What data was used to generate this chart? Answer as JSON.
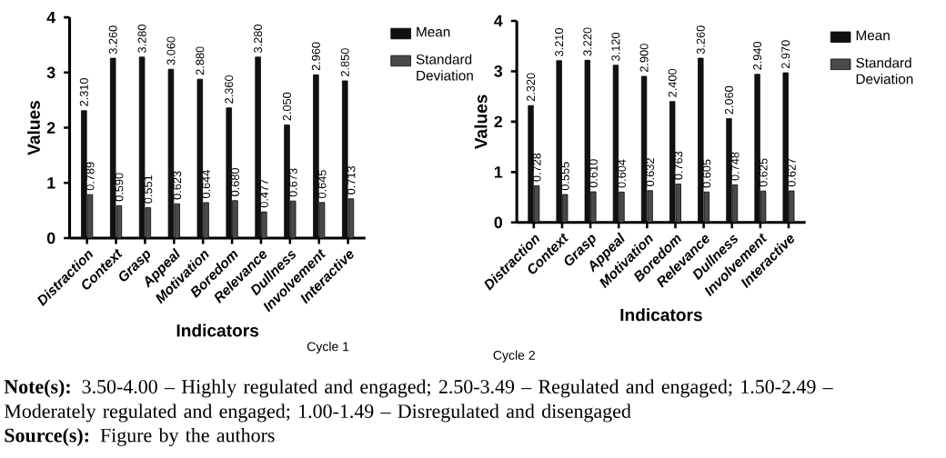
{
  "chart_data": [
    {
      "type": "bar",
      "xlabel": "Indicators",
      "ylabel": "Values",
      "categories": [
        "Distraction",
        "Context",
        "Grasp",
        "Appeal",
        "Motivation",
        "Boredom",
        "Relevance",
        "Dullness",
        "Involvement",
        "Interactive"
      ],
      "series": [
        {
          "name": "Mean",
          "color": "#111111",
          "values": [
            2.31,
            3.26,
            3.28,
            3.06,
            2.88,
            2.36,
            3.28,
            2.05,
            2.96,
            2.85
          ],
          "value_labels": [
            "2.310",
            "3.260",
            "3.280",
            "3.060",
            "2.880",
            "2.360",
            "3.280",
            "2.050",
            "2.960",
            "2.850"
          ]
        },
        {
          "name": "Standard Deviation",
          "color": "#4a4a4a",
          "values": [
            0.789,
            0.59,
            0.551,
            0.623,
            0.644,
            0.68,
            0.477,
            0.673,
            0.645,
            0.713
          ],
          "value_labels": [
            "0.789",
            "0.590",
            "0.551",
            "0.623",
            "0.644",
            "0.680",
            "0.477",
            "0.673",
            "0.645",
            "0.713"
          ]
        }
      ],
      "ylim": [
        0,
        4
      ],
      "yticks": [
        0,
        1,
        2,
        3,
        4
      ],
      "legend": "right",
      "annotations": [
        "Cycle 1",
        "**Note(s):** 3.50-4.00 – Highly regulated and engaged; 2.50-3.49 – Regulated and engaged; 1.50-2.49 – Moderately regulated and engaged; 1.00-1.49 – Disregulated and disengaged",
        "**Source(s):** Figure by the authors"
      ]
    },
    {
      "type": "bar",
      "xlabel": "Indicators",
      "ylabel": "Values",
      "categories": [
        "Distraction",
        "Context",
        "Grasp",
        "Appeal",
        "Motivation",
        "Boredom",
        "Relevance",
        "Dullness",
        "Involvement",
        "Interactive"
      ],
      "series": [
        {
          "name": "Mean",
          "color": "#111111",
          "values": [
            2.32,
            3.21,
            3.22,
            3.12,
            2.9,
            2.4,
            3.26,
            2.06,
            2.94,
            2.97
          ],
          "value_labels": [
            "2.320",
            "3.210",
            "3.220",
            "3.120",
            "2.900",
            "2.400",
            "3.260",
            "2.060",
            "2.940",
            "2.970"
          ]
        },
        {
          "name": "Standard Deviation",
          "color": "#4a4a4a",
          "values": [
            0.728,
            0.555,
            0.61,
            0.604,
            0.632,
            0.763,
            0.605,
            0.748,
            0.625,
            0.627
          ],
          "value_labels": [
            "0.728",
            "0.555",
            "0.610",
            "0.604",
            "0.632",
            "0.763",
            "0.605",
            "0.748",
            "0.625",
            "0.627"
          ]
        }
      ],
      "ylim": [
        0,
        4
      ],
      "yticks": [
        0,
        1,
        2,
        3,
        4
      ],
      "legend": "right",
      "annotations": [
        "Cycle 2"
      ]
    }
  ]
}
